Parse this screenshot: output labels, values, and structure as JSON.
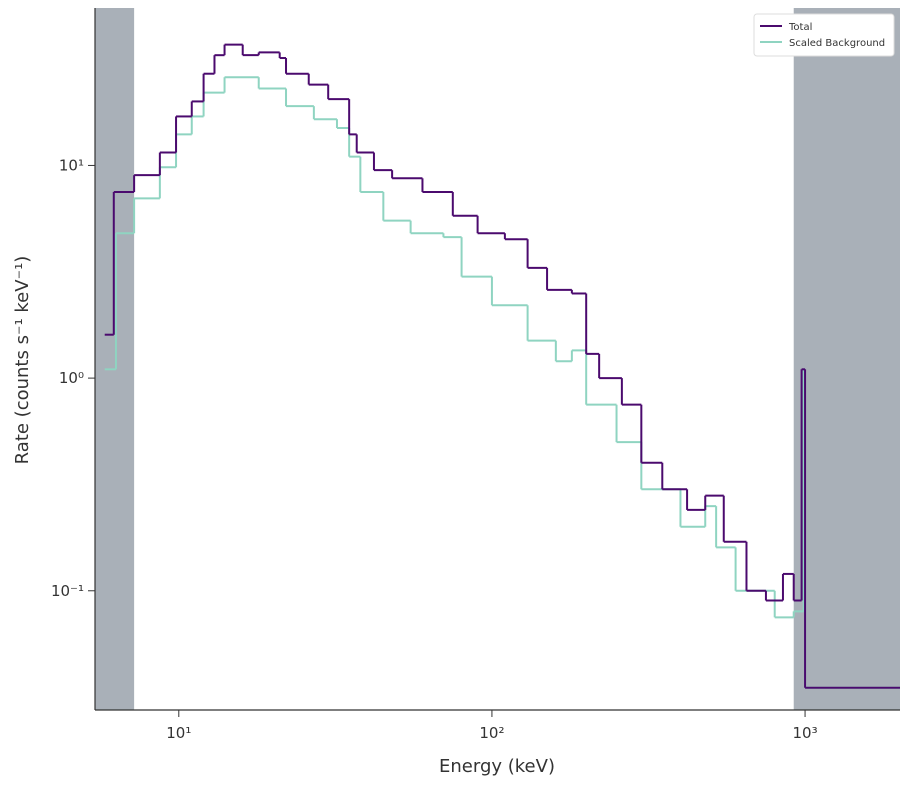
{
  "chart_data": {
    "type": "step",
    "xlabel": "Energy (keV)",
    "ylabel": "Rate (counts s⁻¹ keV⁻¹)",
    "xscale": "log",
    "yscale": "log",
    "xlim": [
      5.4,
      2010
    ],
    "ylim": [
      0.0275,
      55
    ],
    "xticks": [
      {
        "value": 10,
        "label": "10¹"
      },
      {
        "value": 100,
        "label": "10²"
      },
      {
        "value": 1000,
        "label": "10³"
      }
    ],
    "yticks": [
      {
        "value": 0.1,
        "label": "10⁻¹"
      },
      {
        "value": 1,
        "label": "10⁰"
      },
      {
        "value": 10,
        "label": "10¹"
      }
    ],
    "excluded_ranges": [
      [
        5.4,
        7.2
      ],
      [
        920,
        2010
      ]
    ],
    "excluded_color": "#a9b0b8",
    "legend": "upper right",
    "series": [
      {
        "name": "Total",
        "color": "#4b0a6e",
        "bins": [
          5.8,
          6.2,
          7.2,
          8.7,
          9.8,
          11,
          12,
          13,
          14,
          16,
          18,
          21,
          22,
          26,
          30,
          35,
          37,
          42,
          48,
          60,
          75,
          90,
          110,
          130,
          150,
          180,
          200,
          220,
          260,
          300,
          350,
          420,
          480,
          550,
          650,
          750,
          850,
          920,
          975,
          1000,
          2010
        ],
        "values": [
          1.6,
          7.5,
          9,
          11.5,
          17,
          20,
          27,
          33,
          37,
          33,
          34,
          32,
          27,
          24,
          20.5,
          14,
          11.5,
          9.5,
          8.7,
          7.5,
          5.8,
          4.8,
          4.5,
          3.3,
          2.6,
          2.5,
          1.3,
          1.0,
          0.75,
          0.4,
          0.3,
          0.24,
          0.28,
          0.17,
          0.1,
          0.09,
          0.12,
          0.09,
          1.1,
          0.035
        ]
      },
      {
        "name": "Scaled  Background",
        "color": "#8fd4c1",
        "bins": [
          5.8,
          6.3,
          7.2,
          8.7,
          9.8,
          11,
          12,
          14,
          18,
          22,
          27,
          32,
          35,
          38,
          45,
          55,
          70,
          80,
          100,
          130,
          160,
          180,
          200,
          250,
          300,
          400,
          480,
          520,
          600,
          800,
          920,
          990,
          1000,
          2010
        ],
        "values": [
          1.1,
          4.8,
          7,
          9.8,
          14,
          17,
          22,
          26,
          23,
          19,
          16.5,
          15,
          11,
          7.5,
          5.5,
          4.8,
          4.6,
          3,
          2.2,
          1.5,
          1.2,
          1.35,
          0.75,
          0.5,
          0.3,
          0.2,
          0.25,
          0.16,
          0.1,
          0.075,
          0.08,
          1.1,
          0.035
        ]
      }
    ]
  }
}
